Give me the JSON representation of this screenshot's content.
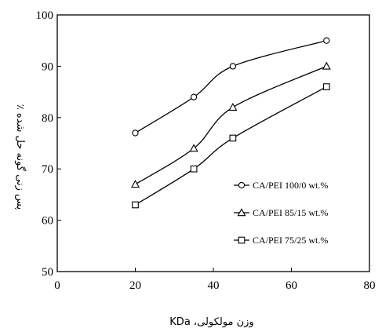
{
  "chart_data": {
    "type": "line",
    "xlabel": "وزن مولکولی، KDa",
    "ylabel": "پس زنی گونه حل شده ٪",
    "xlim": [
      0,
      80
    ],
    "ylim": [
      50,
      100
    ],
    "xticks": [
      0,
      20,
      40,
      60,
      80
    ],
    "yticks": [
      50,
      60,
      70,
      80,
      90,
      100
    ],
    "grid": false,
    "legend_position": "lower-right",
    "series": [
      {
        "name": "CA/PEI 100/0 wt.%",
        "marker": "circle",
        "x": [
          20,
          35,
          45,
          69
        ],
        "y": [
          77,
          84,
          90,
          95
        ]
      },
      {
        "name": "CA/PEI 85/15 wt.%",
        "marker": "triangle",
        "x": [
          20,
          35,
          45,
          69
        ],
        "y": [
          67,
          74,
          82,
          90
        ]
      },
      {
        "name": "CA/PEI 75/25 wt.%",
        "marker": "square",
        "x": [
          20,
          35,
          45,
          69
        ],
        "y": [
          63,
          70,
          76,
          86
        ]
      }
    ]
  }
}
